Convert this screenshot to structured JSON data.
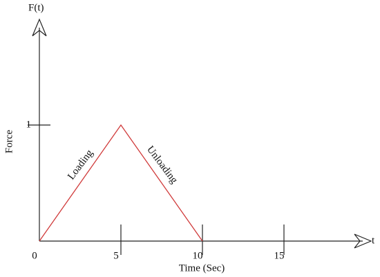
{
  "chart_data": {
    "type": "line",
    "y_label_top": "F(t)",
    "x_label_end": "t",
    "ylabel": "Force",
    "xlabel": "Time (Sec)",
    "annotations": [
      "Loading",
      "Unloading"
    ],
    "x": [
      0,
      5,
      10
    ],
    "values": [
      0,
      1,
      0
    ],
    "color": "#d03a3a",
    "xlim": [
      0,
      20
    ],
    "ylim": [
      0,
      1.8
    ],
    "xticks": [
      0,
      5,
      10,
      15
    ],
    "yticks": [
      1
    ]
  }
}
